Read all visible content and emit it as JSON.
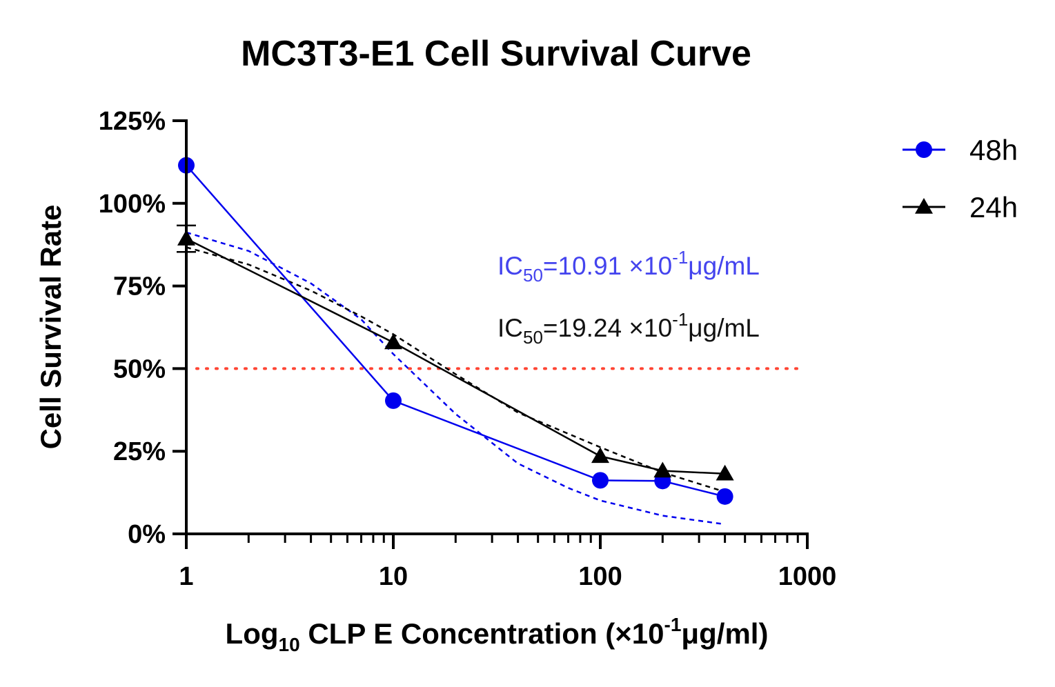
{
  "chart_data": {
    "type": "line",
    "title": "MC3T3-E1 Cell Survival Curve",
    "xlabel": {
      "prefix": "Log",
      "sub": "10",
      "main": " CLP E Concentration (×10",
      "sup": "-1",
      "suffix": "μg/ml)"
    },
    "ylabel": "Cell Survival Rate",
    "x_scale": "log",
    "xlim": [
      1,
      1000
    ],
    "ylim": [
      0,
      125
    ],
    "x_ticks": [
      1,
      10,
      100,
      1000
    ],
    "x_tick_labels": [
      "1",
      "10",
      "100",
      "1000"
    ],
    "y_ticks": [
      0,
      25,
      50,
      75,
      100,
      125
    ],
    "y_tick_labels": [
      "0%",
      "25%",
      "50%",
      "75%",
      "100%",
      "125%"
    ],
    "series": [
      {
        "name": "48h",
        "color": "#0000ee",
        "marker": "circle",
        "x": [
          1,
          10,
          100,
          200,
          400
        ],
        "y": [
          111.5,
          40.3,
          16.2,
          16.0,
          11.3
        ]
      },
      {
        "name": "24h",
        "color": "#000000",
        "marker": "triangle",
        "x": [
          1,
          10,
          100,
          200,
          400
        ],
        "y": [
          89.3,
          57.9,
          23.5,
          19.1,
          18.2
        ],
        "error_bars": [
          4.0,
          0,
          0,
          0,
          0
        ]
      }
    ],
    "fit_curves": [
      {
        "series": "48h",
        "color": "#0000ee",
        "style": "dashed",
        "x": [
          1,
          2,
          4,
          7,
          10,
          20,
          40,
          70,
          100,
          200,
          400
        ],
        "y": [
          91.2,
          85.6,
          75.8,
          64.9,
          54.4,
          36.3,
          21.3,
          13.9,
          10.1,
          5.5,
          2.9
        ]
      },
      {
        "series": "24h",
        "color": "#000000",
        "style": "dashed",
        "x": [
          1,
          2,
          4,
          7,
          10,
          20,
          40,
          70,
          100,
          200,
          400
        ],
        "y": [
          86.7,
          81.5,
          73.6,
          65.8,
          60.4,
          48.3,
          36.7,
          30.3,
          26.2,
          18.6,
          12.7
        ]
      }
    ],
    "reference_lines": [
      {
        "axis": "y",
        "value": 50,
        "color": "#ff4433",
        "style": "dotted"
      }
    ],
    "annotations": [
      {
        "series": "48h",
        "label": "IC",
        "sub": "50",
        "text": "=10.91 ×10",
        "sup": "-1",
        "suffix": "μg/mL",
        "color": "#4444ee"
      },
      {
        "series": "24h",
        "label": "IC",
        "sub": "50",
        "text": "=19.24 ×10",
        "sup": "-1",
        "suffix": "μg/mL",
        "color": "#111111"
      }
    ],
    "legend": {
      "position": "top-right",
      "entries": [
        "48h",
        "24h"
      ]
    },
    "grid": false
  }
}
